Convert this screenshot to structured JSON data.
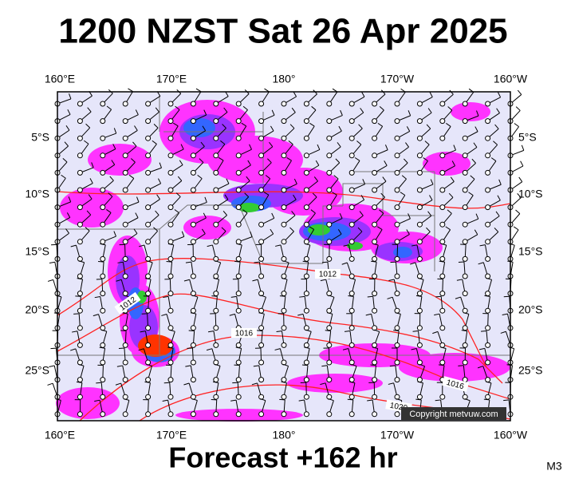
{
  "header": {
    "title": "1200 NZST Sat 26 Apr 2025"
  },
  "axes": {
    "top": [
      "160°E",
      "170°E",
      "180°",
      "170°W",
      "160°W"
    ],
    "bottom": [
      "160°E",
      "170°E",
      "180°",
      "170°W",
      "160°W"
    ],
    "left": [
      "5°S",
      "10°S",
      "15°S",
      "20°S",
      "25°S"
    ],
    "right": [
      "5°S",
      "10°S",
      "15°S",
      "20°S",
      "25°S"
    ]
  },
  "isobar_labels": [
    "1012",
    "1012",
    "1016",
    "1016",
    "1020"
  ],
  "copyright": "Copyright metvuw.com",
  "footer": {
    "text": "Forecast +162 hr",
    "code": "M3"
  }
}
